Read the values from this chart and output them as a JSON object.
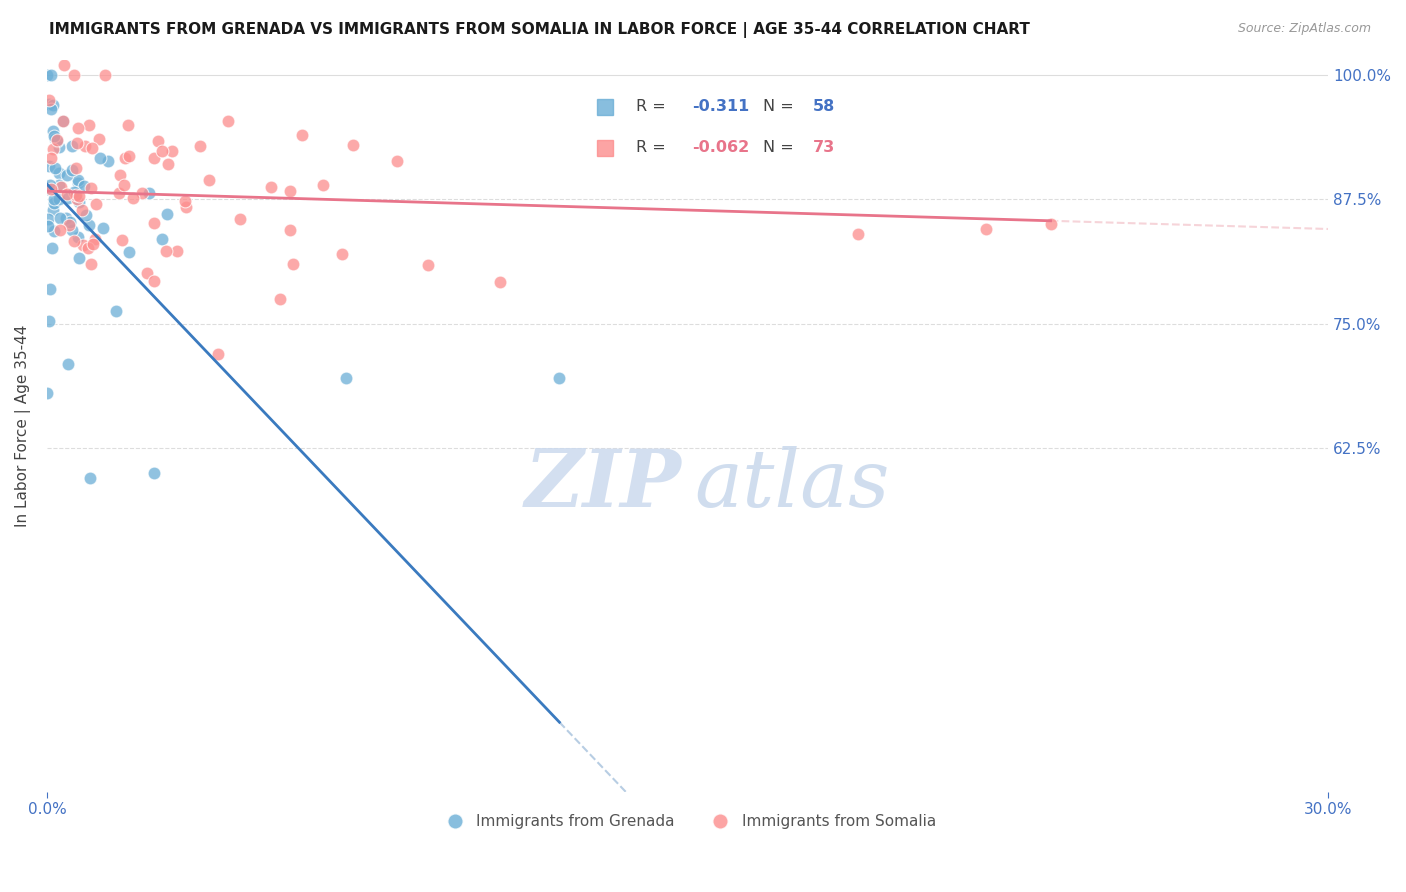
{
  "title": "IMMIGRANTS FROM GRENADA VS IMMIGRANTS FROM SOMALIA IN LABOR FORCE | AGE 35-44 CORRELATION CHART",
  "source": "Source: ZipAtlas.com",
  "ylabel": "In Labor Force | Age 35-44",
  "grenada_color": "#6baed6",
  "somalia_color": "#fc8d8d",
  "grenada_line_color": "#3a7abf",
  "somalia_line_color": "#e8748a",
  "grenada_label": "Immigrants from Grenada",
  "somalia_label": "Immigrants from Somalia",
  "R_grenada": -0.311,
  "N_grenada": 58,
  "R_somalia": -0.062,
  "N_somalia": 73,
  "xmin": 0.0,
  "xmax": 0.3,
  "ymin": 0.28,
  "ymax": 1.015,
  "yticks": [
    1.0,
    0.875,
    0.75,
    0.625
  ],
  "ytick_labels": [
    "100.0%",
    "87.5%",
    "75.0%",
    "62.5%"
  ],
  "xtick_left": "0.0%",
  "xtick_right": "30.0%",
  "grid_color": "#dddddd",
  "dashed_color": "#b0c8e0",
  "dashed_color2": "#f0b8c0",
  "watermark_zip_color": "#c8d8e8",
  "watermark_atlas_color": "#c0d0e8"
}
